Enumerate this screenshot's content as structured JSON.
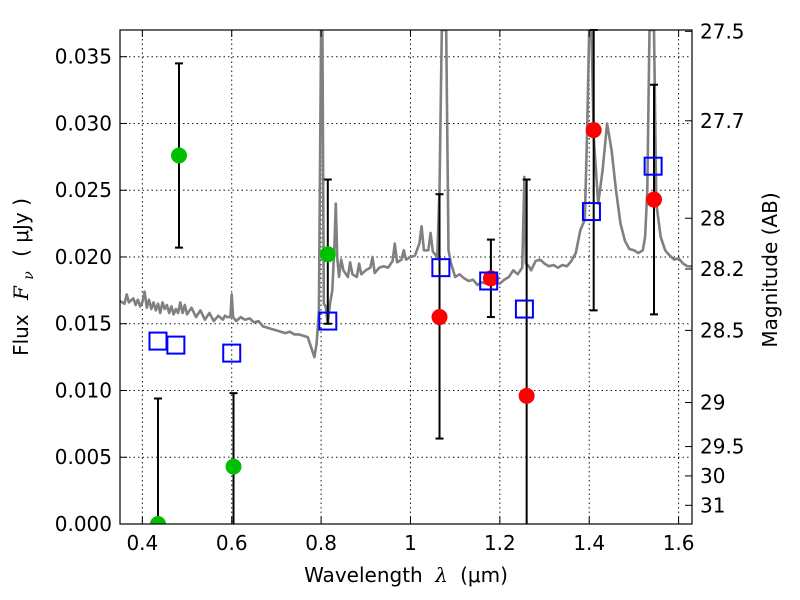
{
  "chart_data": {
    "type": "scatter",
    "xlabel": "Wavelength",
    "xlabel_symbol": "λ",
    "xlabel_unit": "(μm)",
    "ylabel": "Flux",
    "ylabel_symbol": "F",
    "ylabel_sub": "ν",
    "ylabel_unit": "( μJy )",
    "y2label": "Magnitude (AB)",
    "xlim": [
      0.35,
      1.63
    ],
    "ylim": [
      0.0,
      0.037
    ],
    "grid": true,
    "x_ticks": [
      {
        "value": 0.4,
        "label": "0.4"
      },
      {
        "value": 0.6,
        "label": "0.6"
      },
      {
        "value": 0.8,
        "label": "0.8"
      },
      {
        "value": 1.0,
        "label": "1"
      },
      {
        "value": 1.2,
        "label": "1.2"
      },
      {
        "value": 1.4,
        "label": "1.4"
      },
      {
        "value": 1.6,
        "label": "1.6"
      }
    ],
    "y_ticks": [
      {
        "value": 0.0,
        "label": "0.000"
      },
      {
        "value": 0.005,
        "label": "0.005"
      },
      {
        "value": 0.01,
        "label": "0.010"
      },
      {
        "value": 0.015,
        "label": "0.015"
      },
      {
        "value": 0.02,
        "label": "0.020"
      },
      {
        "value": 0.025,
        "label": "0.025"
      },
      {
        "value": 0.03,
        "label": "0.030"
      },
      {
        "value": 0.035,
        "label": "0.035"
      }
    ],
    "mag_ticks": [
      {
        "flux": 0.0369,
        "label": "27.5"
      },
      {
        "flux": 0.0302,
        "label": "27.7"
      },
      {
        "flux": 0.0229,
        "label": "28"
      },
      {
        "flux": 0.0191,
        "label": "28.2"
      },
      {
        "flux": 0.0145,
        "label": "28.5"
      },
      {
        "flux": 0.0091,
        "label": "29"
      },
      {
        "flux": 0.0058,
        "label": "29.5"
      },
      {
        "flux": 0.0036,
        "label": "30"
      },
      {
        "flux": 0.0014,
        "label": "31"
      }
    ],
    "series": [
      {
        "name": "model spectrum",
        "style": "line",
        "color": "#808080",
        "points": [
          [
            0.35,
            0.0167
          ],
          [
            0.36,
            0.0165
          ],
          [
            0.365,
            0.0172
          ],
          [
            0.37,
            0.0166
          ],
          [
            0.38,
            0.0169
          ],
          [
            0.385,
            0.0164
          ],
          [
            0.39,
            0.0168
          ],
          [
            0.395,
            0.0163
          ],
          [
            0.4,
            0.0166
          ],
          [
            0.405,
            0.0174
          ],
          [
            0.41,
            0.0162
          ],
          [
            0.415,
            0.0168
          ],
          [
            0.42,
            0.0161
          ],
          [
            0.425,
            0.0166
          ],
          [
            0.43,
            0.016
          ],
          [
            0.435,
            0.0165
          ],
          [
            0.44,
            0.0158
          ],
          [
            0.445,
            0.0166
          ],
          [
            0.45,
            0.0161
          ],
          [
            0.455,
            0.0164
          ],
          [
            0.46,
            0.0158
          ],
          [
            0.465,
            0.0163
          ],
          [
            0.47,
            0.0157
          ],
          [
            0.475,
            0.0161
          ],
          [
            0.48,
            0.0158
          ],
          [
            0.485,
            0.0166
          ],
          [
            0.49,
            0.0158
          ],
          [
            0.495,
            0.0164
          ],
          [
            0.5,
            0.0157
          ],
          [
            0.51,
            0.0162
          ],
          [
            0.52,
            0.0155
          ],
          [
            0.53,
            0.016
          ],
          [
            0.54,
            0.0153
          ],
          [
            0.55,
            0.0158
          ],
          [
            0.56,
            0.0152
          ],
          [
            0.57,
            0.0156
          ],
          [
            0.58,
            0.0153
          ],
          [
            0.585,
            0.0156
          ],
          [
            0.59,
            0.0155
          ],
          [
            0.597,
            0.0155
          ],
          [
            0.6,
            0.0172
          ],
          [
            0.603,
            0.0155
          ],
          [
            0.61,
            0.0152
          ],
          [
            0.62,
            0.0155
          ],
          [
            0.63,
            0.0153
          ],
          [
            0.64,
            0.0154
          ],
          [
            0.65,
            0.0151
          ],
          [
            0.66,
            0.0152
          ],
          [
            0.67,
            0.0148
          ],
          [
            0.68,
            0.0147
          ],
          [
            0.69,
            0.0146
          ],
          [
            0.7,
            0.0145
          ],
          [
            0.71,
            0.0144
          ],
          [
            0.72,
            0.0143
          ],
          [
            0.73,
            0.0144
          ],
          [
            0.74,
            0.0142
          ],
          [
            0.75,
            0.0142
          ],
          [
            0.76,
            0.0141
          ],
          [
            0.77,
            0.014
          ],
          [
            0.78,
            0.013
          ],
          [
            0.785,
            0.0125
          ],
          [
            0.79,
            0.0135
          ],
          [
            0.795,
            0.016
          ],
          [
            0.8,
            0.037
          ],
          [
            0.803,
            0.037
          ],
          [
            0.806,
            0.0165
          ],
          [
            0.81,
            0.0163
          ],
          [
            0.815,
            0.015
          ],
          [
            0.82,
            0.0165
          ],
          [
            0.825,
            0.0175
          ],
          [
            0.83,
            0.021
          ],
          [
            0.833,
            0.024
          ],
          [
            0.836,
            0.02
          ],
          [
            0.84,
            0.0185
          ],
          [
            0.845,
            0.0198
          ],
          [
            0.85,
            0.019
          ],
          [
            0.86,
            0.0185
          ],
          [
            0.865,
            0.0196
          ],
          [
            0.87,
            0.0187
          ],
          [
            0.88,
            0.0185
          ],
          [
            0.885,
            0.0195
          ],
          [
            0.89,
            0.0187
          ],
          [
            0.9,
            0.019
          ],
          [
            0.91,
            0.0192
          ],
          [
            0.915,
            0.02
          ],
          [
            0.92,
            0.0188
          ],
          [
            0.93,
            0.0192
          ],
          [
            0.94,
            0.0193
          ],
          [
            0.95,
            0.0192
          ],
          [
            0.96,
            0.0197
          ],
          [
            0.965,
            0.021
          ],
          [
            0.97,
            0.0196
          ],
          [
            0.98,
            0.0198
          ],
          [
            0.985,
            0.0205
          ],
          [
            0.99,
            0.0198
          ],
          [
            1.0,
            0.02
          ],
          [
            1.01,
            0.0201
          ],
          [
            1.02,
            0.021
          ],
          [
            1.025,
            0.0223
          ],
          [
            1.03,
            0.0205
          ],
          [
            1.04,
            0.0205
          ],
          [
            1.045,
            0.0218
          ],
          [
            1.05,
            0.0204
          ],
          [
            1.06,
            0.02
          ],
          [
            1.065,
            0.025
          ],
          [
            1.07,
            0.037
          ],
          [
            1.08,
            0.037
          ],
          [
            1.085,
            0.0205
          ],
          [
            1.09,
            0.0196
          ],
          [
            1.1,
            0.0185
          ],
          [
            1.11,
            0.0187
          ],
          [
            1.12,
            0.0184
          ],
          [
            1.13,
            0.0182
          ],
          [
            1.14,
            0.0183
          ],
          [
            1.15,
            0.0179
          ],
          [
            1.16,
            0.0181
          ],
          [
            1.17,
            0.018
          ],
          [
            1.175,
            0.0185
          ],
          [
            1.18,
            0.018
          ],
          [
            1.19,
            0.0182
          ],
          [
            1.2,
            0.018
          ],
          [
            1.21,
            0.0183
          ],
          [
            1.22,
            0.0185
          ],
          [
            1.23,
            0.019
          ],
          [
            1.24,
            0.0187
          ],
          [
            1.25,
            0.0192
          ],
          [
            1.255,
            0.026
          ],
          [
            1.258,
            0.0195
          ],
          [
            1.265,
            0.0193
          ],
          [
            1.27,
            0.019
          ],
          [
            1.28,
            0.0197
          ],
          [
            1.29,
            0.0198
          ],
          [
            1.3,
            0.0195
          ],
          [
            1.31,
            0.0193
          ],
          [
            1.32,
            0.0194
          ],
          [
            1.33,
            0.0192
          ],
          [
            1.34,
            0.0194
          ],
          [
            1.35,
            0.0193
          ],
          [
            1.36,
            0.0197
          ],
          [
            1.37,
            0.0203
          ],
          [
            1.38,
            0.022
          ],
          [
            1.39,
            0.0228
          ],
          [
            1.395,
            0.029
          ],
          [
            1.4,
            0.037
          ],
          [
            1.405,
            0.037
          ],
          [
            1.41,
            0.029
          ],
          [
            1.42,
            0.024
          ],
          [
            1.43,
            0.0265
          ],
          [
            1.44,
            0.03
          ],
          [
            1.45,
            0.028
          ],
          [
            1.46,
            0.025
          ],
          [
            1.47,
            0.0225
          ],
          [
            1.48,
            0.0212
          ],
          [
            1.49,
            0.0206
          ],
          [
            1.5,
            0.0205
          ],
          [
            1.51,
            0.0203
          ],
          [
            1.52,
            0.0205
          ],
          [
            1.525,
            0.0215
          ],
          [
            1.53,
            0.025
          ],
          [
            1.535,
            0.037
          ],
          [
            1.545,
            0.037
          ],
          [
            1.55,
            0.024
          ],
          [
            1.56,
            0.0215
          ],
          [
            1.57,
            0.0205
          ],
          [
            1.58,
            0.0201
          ],
          [
            1.59,
            0.0198
          ],
          [
            1.6,
            0.0199
          ],
          [
            1.61,
            0.0195
          ],
          [
            1.62,
            0.0193
          ],
          [
            1.63,
            0.0193
          ]
        ]
      },
      {
        "name": "green photometry",
        "style": "circle",
        "color": "#00bf00",
        "points": [
          {
            "x": 0.435,
            "y": 0.0,
            "lo": 0.0,
            "hi": 0.0094
          },
          {
            "x": 0.482,
            "y": 0.0276,
            "lo": 0.0207,
            "hi": 0.0345
          },
          {
            "x": 0.604,
            "y": 0.0043,
            "lo": 0.0,
            "hi": 0.0098
          },
          {
            "x": 0.815,
            "y": 0.0202,
            "lo": 0.015,
            "hi": 0.0258
          }
        ]
      },
      {
        "name": "red photometry",
        "style": "circle",
        "color": "#ff0000",
        "points": [
          {
            "x": 1.065,
            "y": 0.0155,
            "lo": 0.0064,
            "hi": 0.0247
          },
          {
            "x": 1.18,
            "y": 0.0184,
            "lo": 0.0155,
            "hi": 0.0213
          },
          {
            "x": 1.26,
            "y": 0.0096,
            "lo": 0.0,
            "hi": 0.0258
          },
          {
            "x": 1.41,
            "y": 0.0295,
            "lo": 0.016,
            "hi": 0.037
          },
          {
            "x": 1.545,
            "y": 0.0243,
            "lo": 0.0157,
            "hi": 0.0329
          }
        ]
      },
      {
        "name": "model photometry",
        "style": "square",
        "color": "#0000ff",
        "points": [
          {
            "x": 0.435,
            "y": 0.0137
          },
          {
            "x": 0.475,
            "y": 0.0134
          },
          {
            "x": 0.6,
            "y": 0.0128
          },
          {
            "x": 0.815,
            "y": 0.0152
          },
          {
            "x": 1.068,
            "y": 0.0192
          },
          {
            "x": 1.175,
            "y": 0.0182
          },
          {
            "x": 1.255,
            "y": 0.0161
          },
          {
            "x": 1.405,
            "y": 0.0234
          },
          {
            "x": 1.543,
            "y": 0.0268
          }
        ]
      }
    ]
  }
}
